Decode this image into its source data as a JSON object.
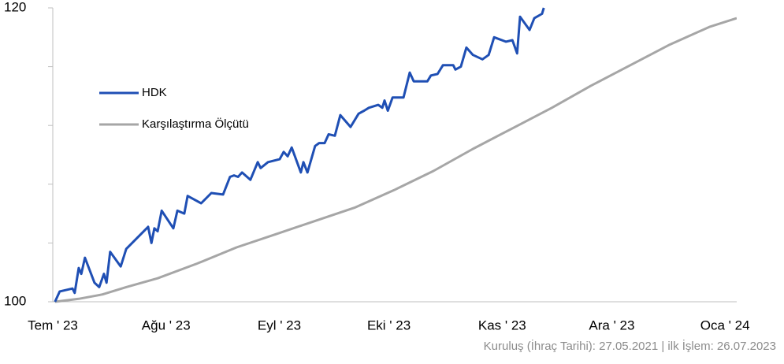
{
  "chart_data": {
    "type": "line",
    "xlim": [
      0,
      187.2
    ],
    "xticks": [
      {
        "value": 0,
        "label": "Tem ' 23"
      },
      {
        "value": 31,
        "label": "Ağu ' 23"
      },
      {
        "value": 62,
        "label": "Eyl ' 23"
      },
      {
        "value": 92,
        "label": "Eki ' 23"
      },
      {
        "value": 123,
        "label": "Kas ' 23"
      },
      {
        "value": 153,
        "label": "Ara ' 23"
      },
      {
        "value": 184,
        "label": "Oca ' 24"
      }
    ],
    "ylim": [
      100,
      120
    ],
    "yticks": [
      100,
      120
    ],
    "yminorticks": [
      104,
      108,
      112,
      116
    ],
    "series": [
      {
        "name": "HDK",
        "color": "#1f4fb4",
        "x": [
          0.6,
          1.9,
          5.4,
          6.0,
          7.1,
          7.8,
          8.8,
          11.4,
          12.7,
          14.0,
          14.7,
          15.7,
          18.6,
          20.1,
          26.1,
          27.0,
          27.8,
          28.7,
          29.8,
          33.0,
          34.1,
          36.0,
          36.9,
          40.6,
          43.4,
          46.6,
          48.5,
          49.6,
          50.7,
          51.8,
          54.1,
          56.1,
          56.9,
          58.9,
          62.1,
          63.2,
          64.3,
          65.4,
          67.9,
          68.6,
          69.7,
          71.8,
          72.9,
          74.4,
          75.5,
          77.2,
          78.7,
          81.5,
          83.7,
          85.2,
          86.5,
          89.1,
          90.2,
          90.8,
          91.7,
          93.0,
          96.0,
          97.7,
          98.8,
          102.5,
          103.5,
          105.3,
          106.8,
          109.6,
          110.2,
          111.7,
          113.2,
          115.0,
          117.6,
          119.3,
          120.8,
          124.0,
          125.8,
          127.1,
          127.9,
          130.5,
          131.8,
          133.9,
          134.4
        ],
        "values": [
          100.0,
          100.7,
          100.9,
          100.6,
          102.3,
          101.9,
          103.0,
          101.3,
          101.0,
          101.9,
          101.3,
          103.4,
          102.4,
          103.6,
          105.1,
          104.0,
          105.0,
          104.8,
          106.2,
          105.0,
          106.2,
          106.0,
          107.2,
          106.7,
          107.4,
          107.3,
          108.5,
          108.6,
          108.5,
          108.8,
          108.3,
          109.5,
          109.1,
          109.5,
          109.7,
          110.2,
          109.9,
          110.5,
          108.8,
          109.5,
          108.8,
          110.6,
          110.8,
          110.8,
          111.4,
          111.3,
          112.7,
          111.9,
          112.8,
          113.0,
          113.2,
          113.4,
          113.2,
          113.7,
          113.0,
          113.9,
          113.9,
          115.6,
          115.0,
          115.0,
          115.4,
          115.5,
          116.1,
          116.1,
          115.8,
          116.0,
          117.3,
          116.8,
          116.5,
          116.8,
          118.0,
          117.7,
          117.8,
          116.9,
          119.4,
          118.5,
          119.3,
          119.6,
          120.0
        ]
      },
      {
        "name": "Karşılaştırma Ölçütü",
        "color": "#a6a6a6",
        "x": [
          0.6,
          7.1,
          13.6,
          20.1,
          28.7,
          39.5,
          50.3,
          61.1,
          71.8,
          82.6,
          93.4,
          104.2,
          115.0,
          125.8,
          136.6,
          147.3,
          158.1,
          168.9,
          179.7,
          187.2
        ],
        "values": [
          100.0,
          100.2,
          100.5,
          101.0,
          101.6,
          102.6,
          103.7,
          104.6,
          105.5,
          106.4,
          107.6,
          108.9,
          110.4,
          111.8,
          113.2,
          114.7,
          116.1,
          117.5,
          118.7,
          119.3
        ]
      }
    ],
    "note": "Kuruluş (İhraç Tarihi): 27.05.2021 | ilk İşlem: 26.07.2023"
  }
}
